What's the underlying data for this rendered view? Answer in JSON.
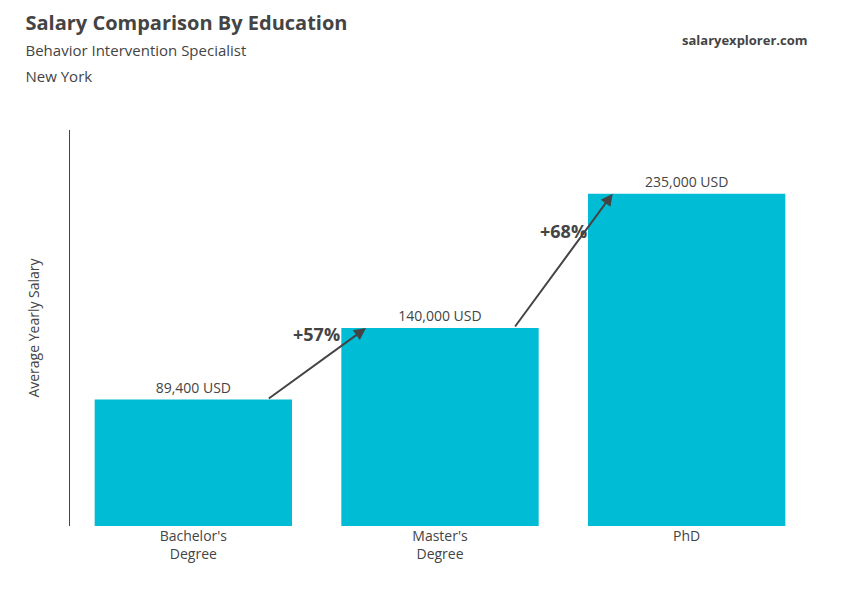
{
  "chart_data": {
    "type": "bar",
    "title": "Salary Comparison By Education",
    "subtitle": [
      "Behavior Intervention Specialist",
      "New York"
    ],
    "ylabel": "Average Yearly Salary",
    "categories": [
      "Bachelor's\nDegree",
      "Master's\nDegree",
      "PhD"
    ],
    "values": [
      89400,
      140000,
      235000
    ],
    "value_labels": [
      "89,400 USD",
      "140,000 USD",
      "235,000 USD"
    ],
    "data_labels": true,
    "color": "#00bcd4",
    "ylim": [
      0,
      280000
    ],
    "grid": false,
    "tick_labels": "x",
    "annotations": [
      {
        "text": "+57%",
        "from": "Bachelor's\nDegree",
        "to": "Master's\nDegree"
      },
      {
        "text": "+68%",
        "from": "Master's\nDegree",
        "to": "PhD"
      },
      {
        "text": "salaryexplorer.com"
      }
    ]
  }
}
